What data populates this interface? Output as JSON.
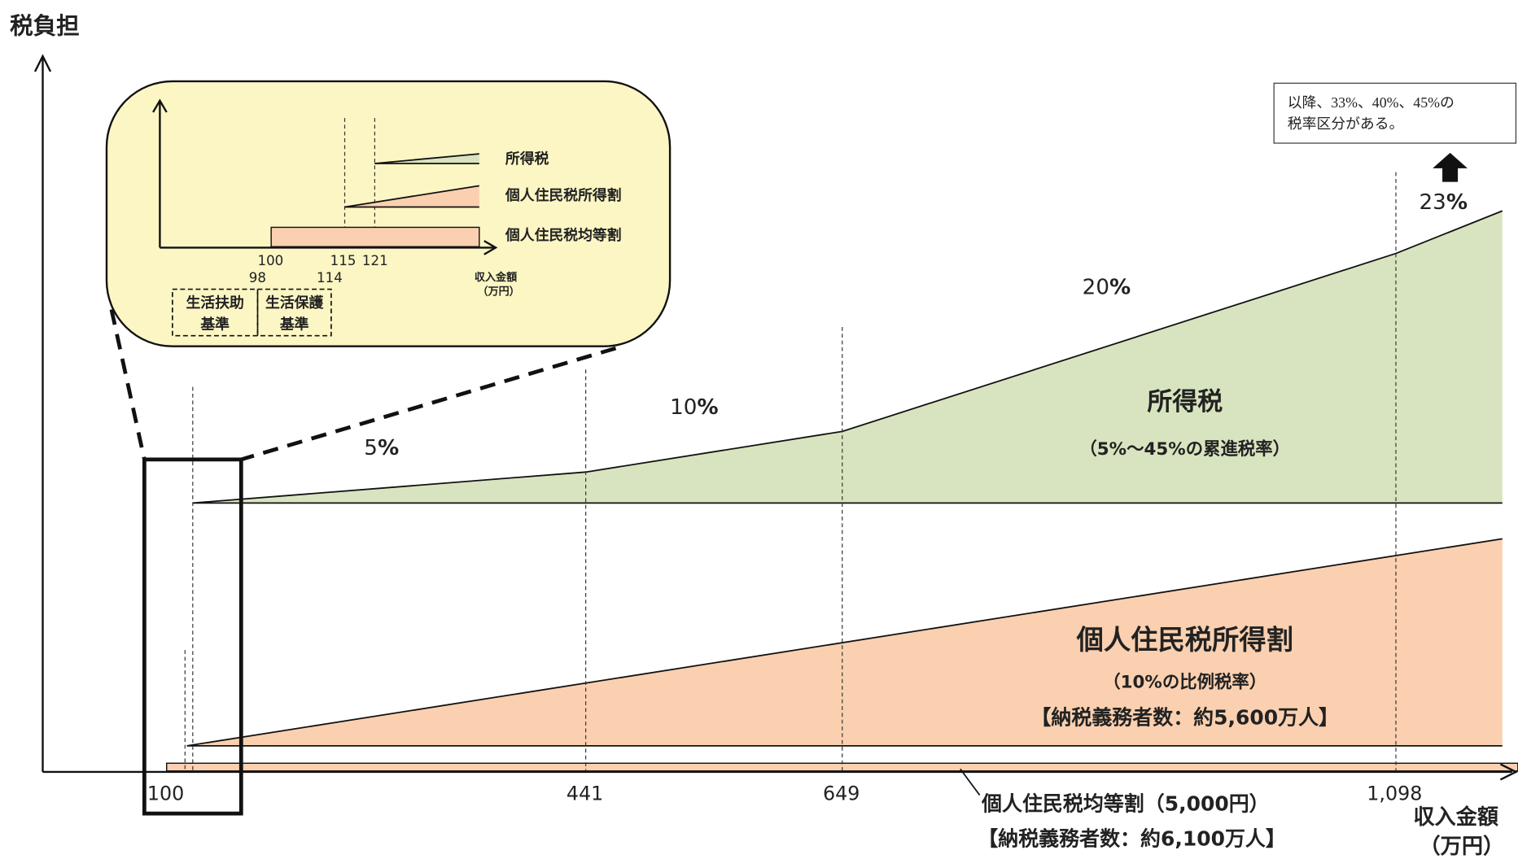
{
  "axes": {
    "y_label": "税負担",
    "x_label_line1": "収入金額",
    "x_label_line2": "（万円）"
  },
  "x_ticks": [
    "100",
    "441",
    "649",
    "1,098"
  ],
  "rates": {
    "r5_num": "5",
    "r5_pct": "%",
    "r10_num": "10",
    "r10_pct": "%",
    "r20_num": "20",
    "r20_pct": "%",
    "r23_num": "23",
    "r23_pct": "%"
  },
  "top_note": {
    "line1": "以降、33%、40%、45%の",
    "line2": "税率区分がある。"
  },
  "income_tax": {
    "title": "所得税",
    "subtitle": "（5%～45%の累進税率）"
  },
  "resident_income_levy": {
    "title": "個人住民税所得割",
    "subtitle": "（10%の比例税率）",
    "taxpayers": "【納税義務者数：約5,600万人】"
  },
  "resident_per_capita": {
    "title": "個人住民税均等割（5,000円）",
    "taxpayers": "【納税義務者数：約6,100万人】"
  },
  "inset": {
    "legend_income_tax": "所得税",
    "legend_resident_income": "個人住民税所得割",
    "legend_resident_flat": "個人住民税均等割",
    "ticks_upper": [
      "100",
      "115",
      "121"
    ],
    "ticks_lower": [
      "98",
      "114"
    ],
    "x_label_line1": "収入金額",
    "x_label_line2": "（万円）",
    "box1_line1": "生活扶助",
    "box1_line2": "基準",
    "box2_line1": "生活保護",
    "box2_line2": "基準"
  },
  "colors": {
    "income_tax_fill": "#d8e4bf",
    "resident_fill": "#fad0b0",
    "inset_bg": "#fbf6c4"
  }
}
